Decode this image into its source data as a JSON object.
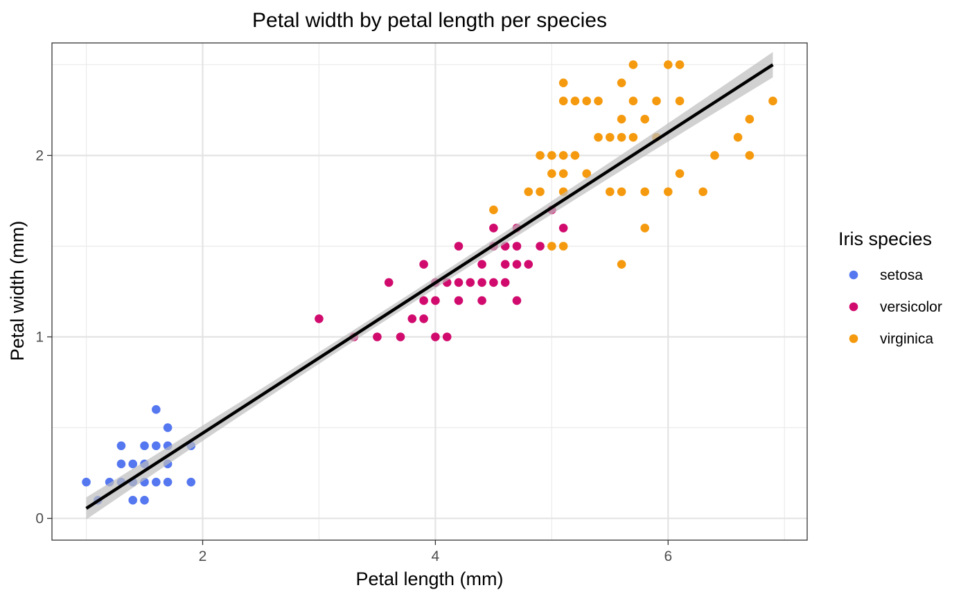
{
  "chart_data": {
    "type": "scatter",
    "title": "Petal width by petal length per species",
    "xlabel": "Petal length (mm)",
    "ylabel": "Petal width (mm)",
    "xlim": [
      0.705,
      7.195
    ],
    "ylim": [
      -0.12,
      2.62
    ],
    "x_ticks": [
      2,
      4,
      6
    ],
    "x_tick_labels": [
      "2",
      "4",
      "6"
    ],
    "y_ticks": [
      0,
      1,
      2
    ],
    "y_tick_labels": [
      "0",
      "1",
      "2"
    ],
    "x_minor_ticks": [
      1,
      3,
      5,
      7
    ],
    "y_minor_ticks": [
      0.5,
      1.5,
      2.5
    ],
    "grid": true,
    "legend": {
      "title": "Iris species",
      "placement": "right"
    },
    "series": [
      {
        "name": "setosa",
        "color": "#5577F0",
        "points": [
          [
            1.0,
            0.2
          ],
          [
            1.1,
            0.1
          ],
          [
            1.2,
            0.2
          ],
          [
            1.3,
            0.2
          ],
          [
            1.3,
            0.3
          ],
          [
            1.3,
            0.4
          ],
          [
            1.4,
            0.1
          ],
          [
            1.4,
            0.2
          ],
          [
            1.4,
            0.3
          ],
          [
            1.5,
            0.1
          ],
          [
            1.5,
            0.2
          ],
          [
            1.5,
            0.3
          ],
          [
            1.5,
            0.4
          ],
          [
            1.6,
            0.2
          ],
          [
            1.6,
            0.4
          ],
          [
            1.6,
            0.6
          ],
          [
            1.7,
            0.2
          ],
          [
            1.7,
            0.3
          ],
          [
            1.7,
            0.4
          ],
          [
            1.7,
            0.5
          ],
          [
            1.9,
            0.2
          ],
          [
            1.9,
            0.4
          ]
        ]
      },
      {
        "name": "versicolor",
        "color": "#D10B6E",
        "points": [
          [
            3.0,
            1.1
          ],
          [
            3.3,
            1.0
          ],
          [
            3.5,
            1.0
          ],
          [
            3.6,
            1.3
          ],
          [
            3.7,
            1.0
          ],
          [
            3.8,
            1.1
          ],
          [
            3.9,
            1.1
          ],
          [
            3.9,
            1.2
          ],
          [
            3.9,
            1.4
          ],
          [
            4.0,
            1.0
          ],
          [
            4.0,
            1.2
          ],
          [
            4.0,
            1.3
          ],
          [
            4.1,
            1.0
          ],
          [
            4.1,
            1.3
          ],
          [
            4.2,
            1.2
          ],
          [
            4.2,
            1.3
          ],
          [
            4.2,
            1.5
          ],
          [
            4.3,
            1.3
          ],
          [
            4.4,
            1.2
          ],
          [
            4.4,
            1.3
          ],
          [
            4.4,
            1.4
          ],
          [
            4.5,
            1.3
          ],
          [
            4.5,
            1.5
          ],
          [
            4.5,
            1.6
          ],
          [
            4.6,
            1.3
          ],
          [
            4.6,
            1.4
          ],
          [
            4.6,
            1.5
          ],
          [
            4.7,
            1.2
          ],
          [
            4.7,
            1.4
          ],
          [
            4.7,
            1.5
          ],
          [
            4.7,
            1.6
          ],
          [
            4.8,
            1.4
          ],
          [
            4.9,
            1.5
          ],
          [
            5.0,
            1.7
          ],
          [
            5.1,
            1.6
          ]
        ]
      },
      {
        "name": "virginica",
        "color": "#F59A0E",
        "points": [
          [
            4.5,
            1.7
          ],
          [
            4.8,
            1.8
          ],
          [
            4.9,
            1.8
          ],
          [
            4.9,
            2.0
          ],
          [
            5.0,
            1.5
          ],
          [
            5.0,
            1.9
          ],
          [
            5.0,
            2.0
          ],
          [
            5.1,
            1.5
          ],
          [
            5.1,
            1.8
          ],
          [
            5.1,
            1.9
          ],
          [
            5.1,
            2.0
          ],
          [
            5.1,
            2.3
          ],
          [
            5.1,
            2.4
          ],
          [
            5.2,
            2.0
          ],
          [
            5.2,
            2.3
          ],
          [
            5.3,
            1.9
          ],
          [
            5.3,
            2.3
          ],
          [
            5.4,
            2.1
          ],
          [
            5.4,
            2.3
          ],
          [
            5.5,
            1.8
          ],
          [
            5.5,
            2.1
          ],
          [
            5.6,
            1.4
          ],
          [
            5.6,
            1.8
          ],
          [
            5.6,
            2.1
          ],
          [
            5.6,
            2.2
          ],
          [
            5.6,
            2.4
          ],
          [
            5.7,
            2.1
          ],
          [
            5.7,
            2.3
          ],
          [
            5.7,
            2.5
          ],
          [
            5.8,
            1.6
          ],
          [
            5.8,
            1.8
          ],
          [
            5.8,
            2.2
          ],
          [
            5.9,
            2.1
          ],
          [
            5.9,
            2.3
          ],
          [
            6.0,
            1.8
          ],
          [
            6.0,
            2.5
          ],
          [
            6.1,
            1.9
          ],
          [
            6.1,
            2.3
          ],
          [
            6.1,
            2.5
          ],
          [
            6.3,
            1.8
          ],
          [
            6.4,
            2.0
          ],
          [
            6.6,
            2.1
          ],
          [
            6.7,
            2.0
          ],
          [
            6.7,
            2.2
          ],
          [
            6.9,
            2.3
          ]
        ]
      }
    ],
    "trend_line": {
      "color": "#000000",
      "band_color": "#BEBEBE",
      "x_start": 1.0,
      "y_start": 0.055,
      "x_end": 6.9,
      "y_end": 2.5,
      "band_halfwidth_ends": 0.07,
      "band_halfwidth_mid": 0.03,
      "band_center_x": 3.76
    }
  }
}
